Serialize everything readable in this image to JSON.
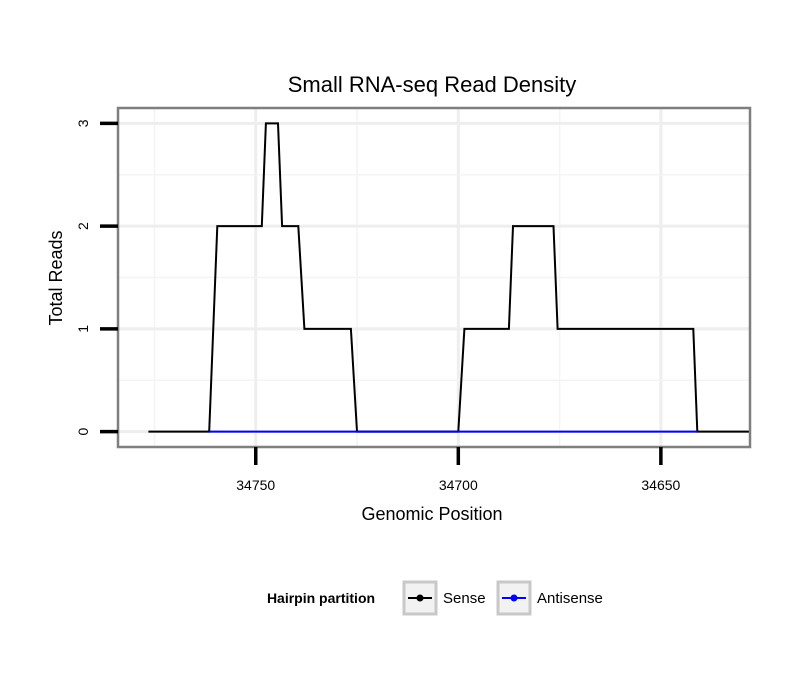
{
  "chart_data": {
    "type": "line",
    "title": "Small RNA-seq Read Density",
    "xlabel": "Genomic Position",
    "ylabel": "Total Reads",
    "x_reversed": true,
    "xlim": [
      34784.0,
      34628.0
    ],
    "ylim": [
      -0.15,
      3.15
    ],
    "x_ticks": [
      34750,
      34700,
      34650
    ],
    "x_tick_labels": [
      "34750",
      "34700",
      "34650"
    ],
    "y_ticks": [
      0,
      1,
      2,
      3
    ],
    "y_tick_labels": [
      "0",
      "1",
      "2",
      "3"
    ],
    "grid": true,
    "legend_title": "Hairpin partition",
    "legend_position": "bottom",
    "series": [
      {
        "name": "Sense",
        "color": "#000000",
        "x": [
          34776.5,
          34761.5,
          34759.5,
          34748.5,
          34747.5,
          34744.5,
          34743.5,
          34739.5,
          34738.0,
          34726.5,
          34725.0,
          34700.0,
          34698.5,
          34687.5,
          34686.5,
          34676.5,
          34675.5,
          34642.0,
          34641.0,
          34628.0
        ],
        "y": [
          0,
          0,
          2,
          2,
          3,
          3,
          2,
          2,
          1,
          1,
          0,
          0,
          1,
          1,
          2,
          2,
          1,
          1,
          0,
          0
        ]
      },
      {
        "name": "Antisense",
        "color": "#0000ff",
        "x": [
          34761.5,
          34725.0,
          34700.0,
          34641.0
        ],
        "y": [
          0,
          0,
          0,
          0
        ]
      }
    ]
  }
}
